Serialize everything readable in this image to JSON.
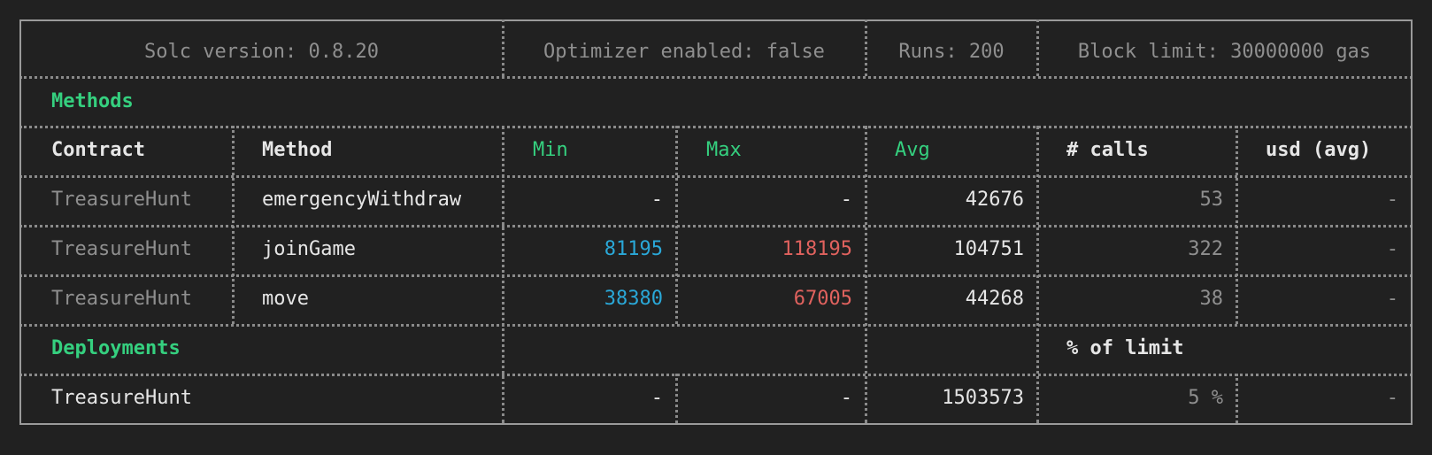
{
  "config": {
    "solc": "Solc version: 0.8.20",
    "optimizer": "Optimizer enabled: false",
    "runs": "Runs: 200",
    "block_limit": "Block limit: 30000000 gas"
  },
  "methods_section": {
    "title": "Methods",
    "headers": {
      "contract": "Contract",
      "method": "Method",
      "min": "Min",
      "max": "Max",
      "avg": "Avg",
      "calls": "# calls",
      "usd": "usd (avg)"
    },
    "rows": [
      {
        "contract": "TreasureHunt",
        "method": "emergencyWithdraw",
        "min": "-",
        "max": "-",
        "avg": "42676",
        "calls": "53",
        "usd": "-"
      },
      {
        "contract": "TreasureHunt",
        "method": "joinGame",
        "min": "81195",
        "max": "118195",
        "avg": "104751",
        "calls": "322",
        "usd": "-"
      },
      {
        "contract": "TreasureHunt",
        "method": "move",
        "min": "38380",
        "max": "67005",
        "avg": "44268",
        "calls": "38",
        "usd": "-"
      }
    ]
  },
  "deployments_section": {
    "title": "Deployments",
    "pct_header": "% of limit",
    "rows": [
      {
        "contract": "TreasureHunt",
        "min": "-",
        "max": "-",
        "avg": "1503573",
        "pct": "5 %",
        "usd": "-"
      }
    ]
  },
  "colors": {
    "background": "#212121",
    "border": "#9a9a9a",
    "text": "#d6d6d6",
    "muted": "#8f8f8f",
    "green": "#35d07f",
    "cyan": "#2aa8d8",
    "red": "#e0625e"
  }
}
